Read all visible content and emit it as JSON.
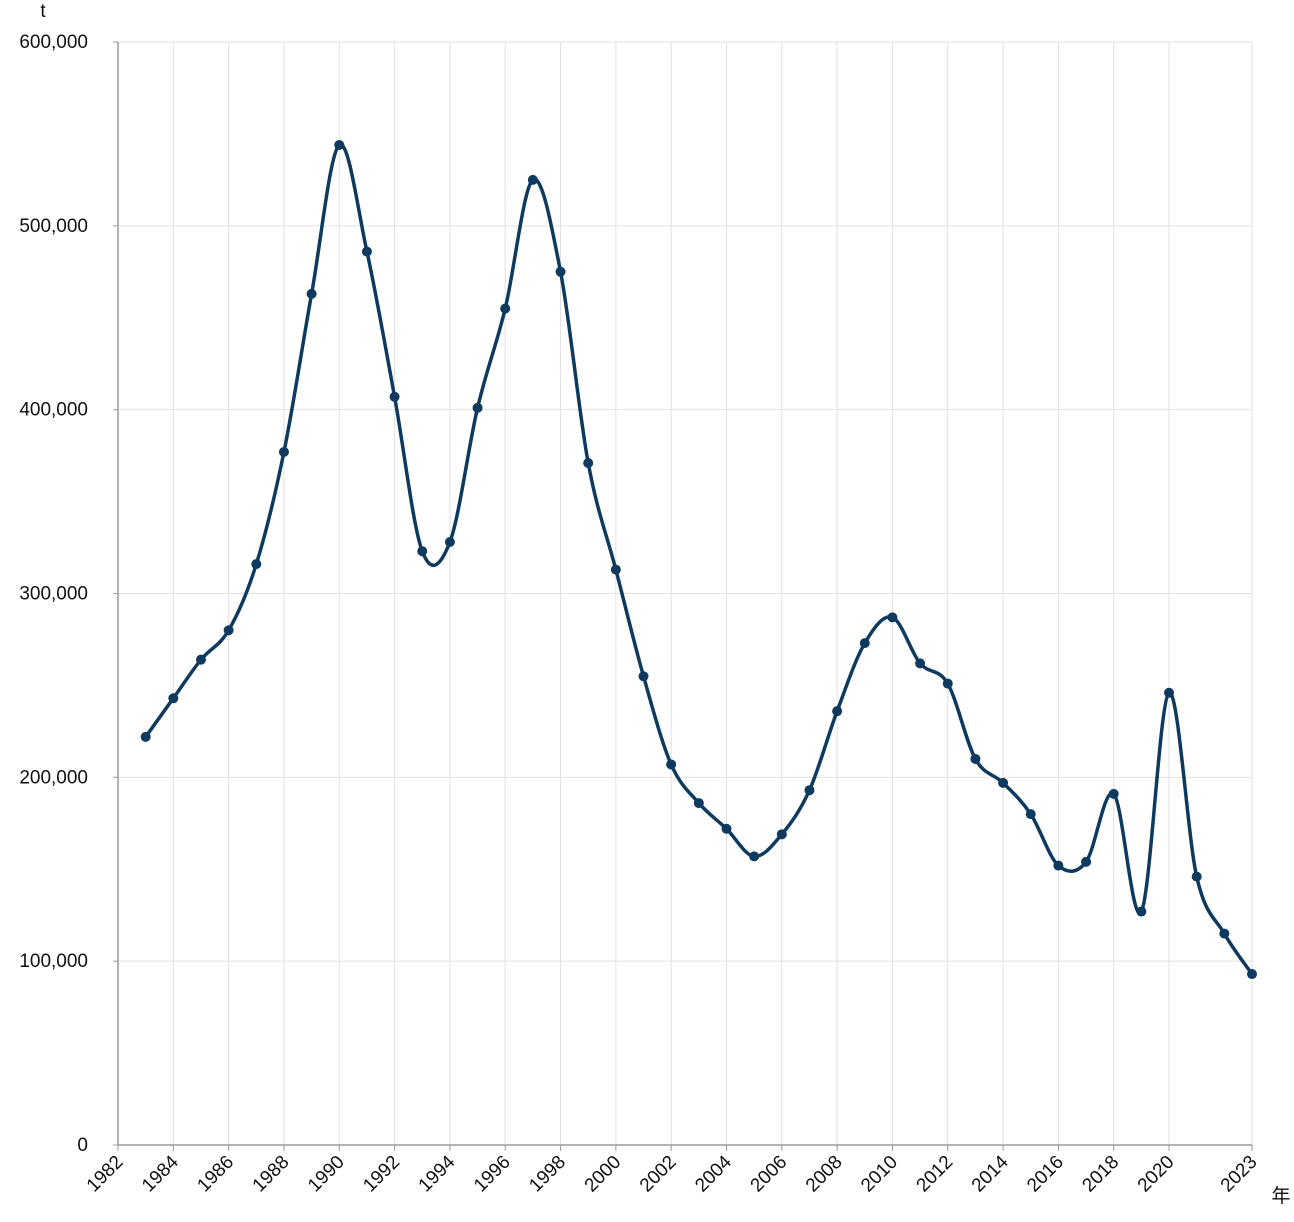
{
  "chart_data": {
    "type": "line",
    "title": "",
    "y_unit": "t",
    "x_unit": "年",
    "ylim": [
      0,
      600000
    ],
    "y_ticks": [
      "0",
      "100,000",
      "200,000",
      "300,000",
      "400,000",
      "500,000",
      "600,000"
    ],
    "y_tick_values": [
      0,
      100000,
      200000,
      300000,
      400000,
      500000,
      600000
    ],
    "x_tick_labels": [
      "1982",
      "1984",
      "1986",
      "1988",
      "1990",
      "1992",
      "1994",
      "1996",
      "1998",
      "2000",
      "2002",
      "2004",
      "2006",
      "2008",
      "2010",
      "2012",
      "2014",
      "2016",
      "2018",
      "2020",
      "2023"
    ],
    "x_tick_values": [
      1982,
      1984,
      1986,
      1988,
      1990,
      1992,
      1994,
      1996,
      1998,
      2000,
      2002,
      2004,
      2006,
      2008,
      2010,
      2012,
      2014,
      2016,
      2018,
      2020,
      2023
    ],
    "grid": true,
    "line_color": "#0f3a5f",
    "series": [
      {
        "x": [
          1983,
          1984,
          1985,
          1986,
          1987,
          1988,
          1989,
          1990,
          1991,
          1992,
          1993,
          1994,
          1995,
          1996,
          1997,
          1998,
          1999,
          2000,
          2001,
          2002,
          2003,
          2004,
          2005,
          2006,
          2007,
          2008,
          2009,
          2010,
          2011,
          2012,
          2013,
          2014,
          2015,
          2016,
          2017,
          2018,
          2019,
          2020,
          2021,
          2022,
          2023
        ],
        "values": [
          222000,
          243000,
          264000,
          280000,
          316000,
          377000,
          463000,
          544000,
          486000,
          407000,
          323000,
          328000,
          401000,
          455000,
          525000,
          475000,
          371000,
          313000,
          255000,
          207000,
          186000,
          172000,
          157000,
          169000,
          193000,
          236000,
          273000,
          287000,
          262000,
          251000,
          210000,
          197000,
          180000,
          152000,
          154000,
          191000,
          127000,
          246000,
          146000,
          115000,
          93000
        ]
      }
    ]
  }
}
